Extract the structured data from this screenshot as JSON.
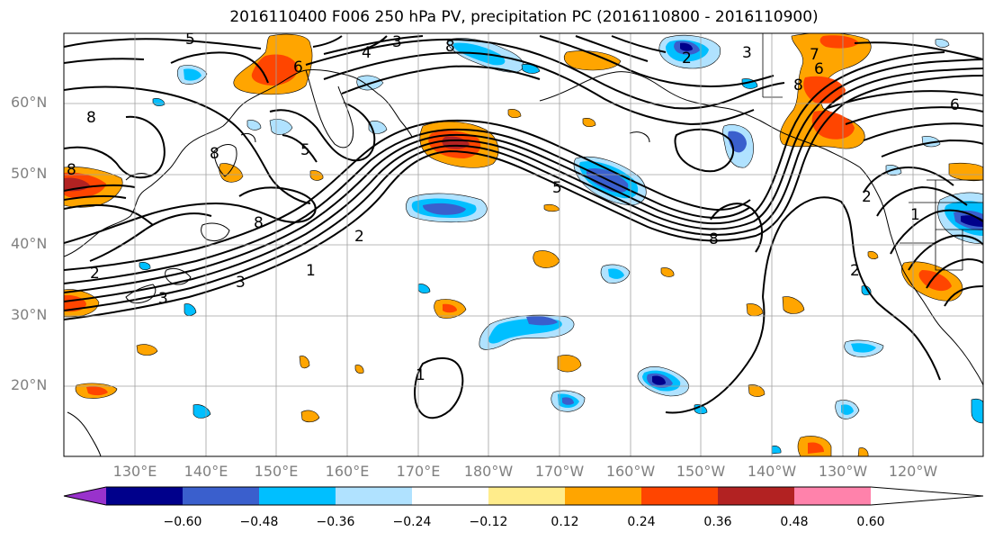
{
  "title": "2016110400 F006 250 hPa PV, precipitation PC (2016110800 - 2016110900)",
  "lat_labels": [
    "60°N",
    "50°N",
    "40°N",
    "30°N",
    "20°N"
  ],
  "lon_labels": [
    "130°E",
    "140°E",
    "150°E",
    "160°E",
    "170°E",
    "180°W",
    "170°W",
    "160°W",
    "150°W",
    "140°W",
    "130°W",
    "120°W"
  ],
  "colorbar": {
    "ticks": [
      "−0.60",
      "−0.48",
      "−0.36",
      "−0.24",
      "−0.12",
      "0.12",
      "0.24",
      "0.36",
      "0.48",
      "0.60"
    ],
    "colors": [
      "#9932cc",
      "#00008b",
      "#3a5fcd",
      "#00bfff",
      "#b0e2ff",
      "#ffffff",
      "#ffec8b",
      "#ffa500",
      "#ff4500",
      "#b22222",
      "#ff82ab"
    ]
  },
  "contour_labels": [
    "5",
    "4",
    "3",
    "6",
    "8",
    "2",
    "1",
    "3",
    "8",
    "1",
    "2",
    "3",
    "8",
    "6",
    "8",
    "2",
    "8",
    "6",
    "7",
    "2",
    "2",
    "1",
    "3",
    "5",
    "5",
    "8",
    "8"
  ],
  "colors": {
    "positive_shade": "#ffa500",
    "negative_shade": "#00bfff",
    "grid": "#a0a0a0",
    "contour": "#000000"
  }
}
